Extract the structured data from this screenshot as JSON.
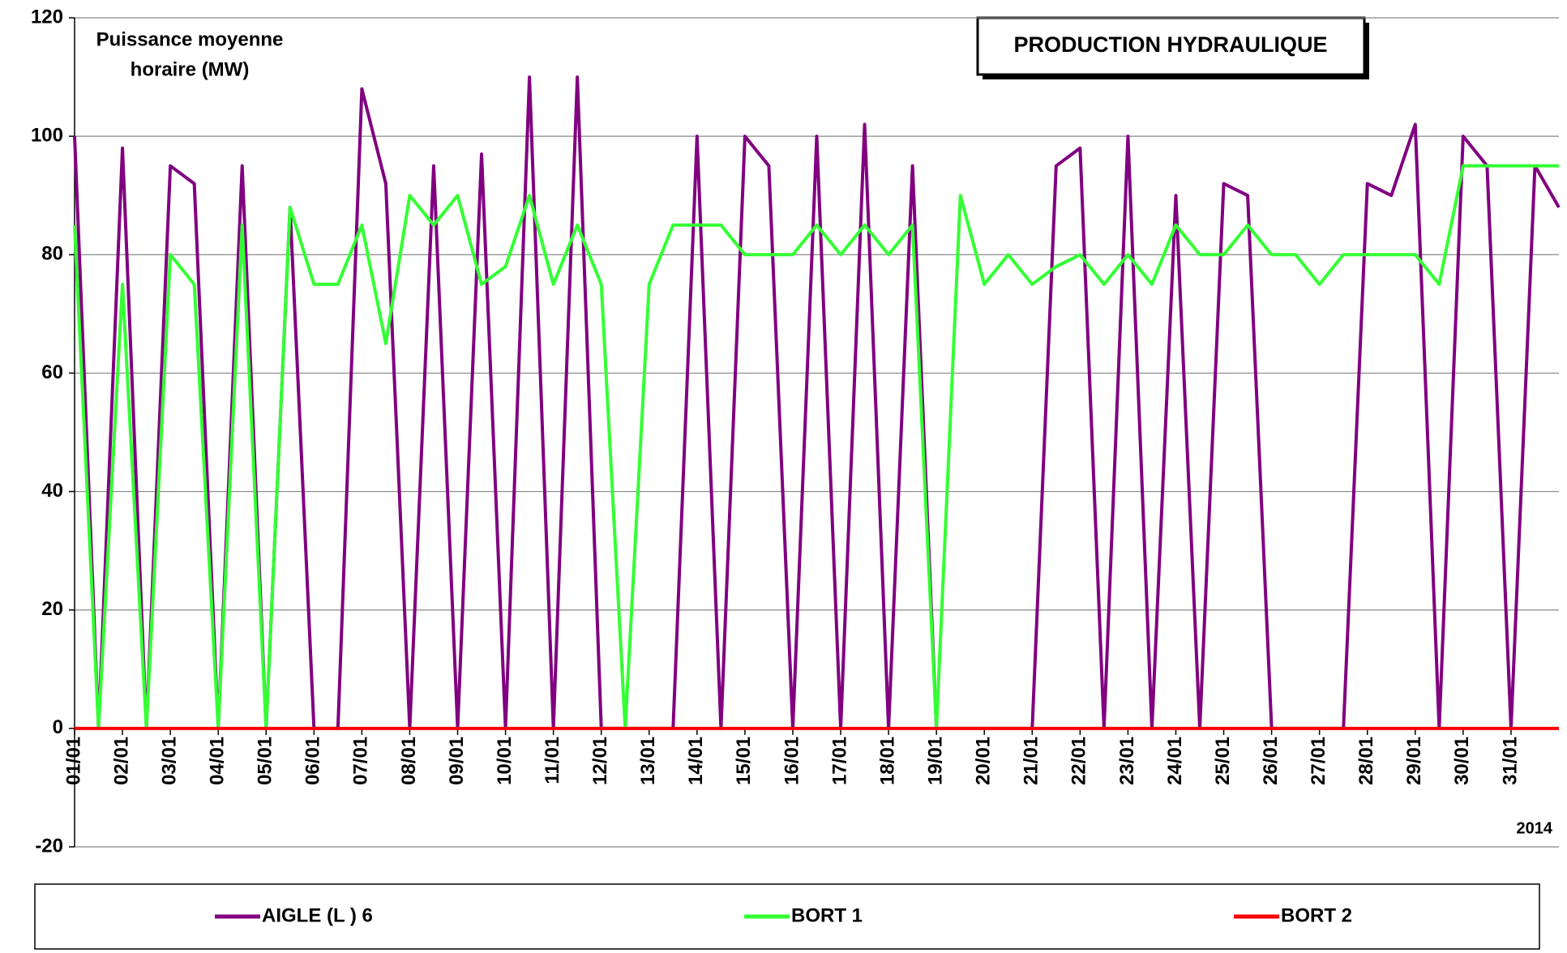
{
  "chart_data": {
    "type": "line",
    "title": "PRODUCTION HYDRAULIQUE",
    "ylabel": [
      "Puissance moyenne",
      "horaire (MW)"
    ],
    "year_label": "2014",
    "x": [
      0,
      0.5,
      1,
      1.5,
      2,
      2.5,
      3,
      3.5,
      4,
      4.5,
      5,
      5.5,
      6,
      6.5,
      7,
      7.5,
      8,
      8.5,
      9,
      9.5,
      10,
      10.5,
      11,
      11.5,
      12,
      12.5,
      13,
      13.5,
      14,
      14.5,
      15,
      15.5,
      16,
      16.5,
      17,
      17.5,
      18,
      18.5,
      19,
      19.5,
      20,
      20.5,
      21,
      21.5,
      22,
      22.5,
      23,
      23.5,
      24,
      24.5,
      25,
      25.5,
      26,
      26.5,
      27,
      27.5,
      28,
      28.5,
      29,
      29.5,
      30,
      30.5,
      31
    ],
    "series": [
      {
        "name": "AIGLE (L ) 6",
        "color": "#800080",
        "values": [
          100,
          0,
          98,
          0,
          95,
          92,
          0,
          95,
          0,
          88,
          0,
          0,
          108,
          92,
          0,
          95,
          0,
          97,
          0,
          110,
          0,
          110,
          0,
          0,
          0,
          0,
          100,
          0,
          100,
          95,
          0,
          100,
          0,
          102,
          0,
          95,
          0,
          0,
          0,
          0,
          0,
          95,
          98,
          0,
          100,
          0,
          90,
          0,
          92,
          90,
          0,
          0,
          0,
          0,
          92,
          90,
          102,
          0,
          100,
          95,
          0,
          95,
          88
        ]
      },
      {
        "name": "BORT 1",
        "color": "#33ff33",
        "values": [
          85,
          0,
          75,
          0,
          80,
          75,
          0,
          85,
          0,
          88,
          75,
          75,
          85,
          65,
          90,
          85,
          90,
          75,
          78,
          90,
          75,
          85,
          75,
          0,
          75,
          85,
          85,
          85,
          80,
          80,
          80,
          85,
          80,
          85,
          80,
          85,
          0,
          90,
          75,
          80,
          75,
          78,
          80,
          75,
          80,
          75,
          85,
          80,
          80,
          85,
          80,
          80,
          75,
          80,
          80,
          80,
          80,
          75,
          95,
          95,
          95,
          95,
          95
        ]
      },
      {
        "name": "BORT 2",
        "color": "#ff0000",
        "values": [
          0,
          0,
          0,
          0,
          0,
          0,
          0,
          0,
          0,
          0,
          0,
          0,
          0,
          0,
          0,
          0,
          0,
          0,
          0,
          0,
          0,
          0,
          0,
          0,
          0,
          0,
          0,
          0,
          0,
          0,
          0,
          0,
          0,
          0,
          0,
          0,
          0,
          0,
          0,
          0,
          0,
          0,
          0,
          0,
          0,
          0,
          0,
          0,
          0,
          0,
          0,
          0,
          0,
          0,
          0,
          0,
          0,
          0,
          0,
          0,
          0,
          0,
          0
        ]
      }
    ],
    "xlim": [
      0,
      31
    ],
    "xticks": [
      {
        "value": 0,
        "label": "01/01"
      },
      {
        "value": 1,
        "label": "02/01"
      },
      {
        "value": 2,
        "label": "03/01"
      },
      {
        "value": 3,
        "label": "04/01"
      },
      {
        "value": 4,
        "label": "05/01"
      },
      {
        "value": 5,
        "label": "06/01"
      },
      {
        "value": 6,
        "label": "07/01"
      },
      {
        "value": 7,
        "label": "08/01"
      },
      {
        "value": 8,
        "label": "09/01"
      },
      {
        "value": 9,
        "label": "10/01"
      },
      {
        "value": 10,
        "label": "11/01"
      },
      {
        "value": 11,
        "label": "12/01"
      },
      {
        "value": 12,
        "label": "13/01"
      },
      {
        "value": 13,
        "label": "14/01"
      },
      {
        "value": 14,
        "label": "15/01"
      },
      {
        "value": 15,
        "label": "16/01"
      },
      {
        "value": 16,
        "label": "17/01"
      },
      {
        "value": 17,
        "label": "18/01"
      },
      {
        "value": 18,
        "label": "19/01"
      },
      {
        "value": 19,
        "label": "20/01"
      },
      {
        "value": 20,
        "label": "21/01"
      },
      {
        "value": 21,
        "label": "22/01"
      },
      {
        "value": 22,
        "label": "23/01"
      },
      {
        "value": 23,
        "label": "24/01"
      },
      {
        "value": 24,
        "label": "25/01"
      },
      {
        "value": 25,
        "label": "26/01"
      },
      {
        "value": 26,
        "label": "27/01"
      },
      {
        "value": 27,
        "label": "28/01"
      },
      {
        "value": 28,
        "label": "29/01"
      },
      {
        "value": 29,
        "label": "30/01"
      },
      {
        "value": 30,
        "label": "31/01"
      }
    ],
    "ylim": [
      -20,
      120
    ],
    "yticks": [
      -20,
      0,
      20,
      40,
      60,
      80,
      100,
      120
    ],
    "grid": true
  }
}
